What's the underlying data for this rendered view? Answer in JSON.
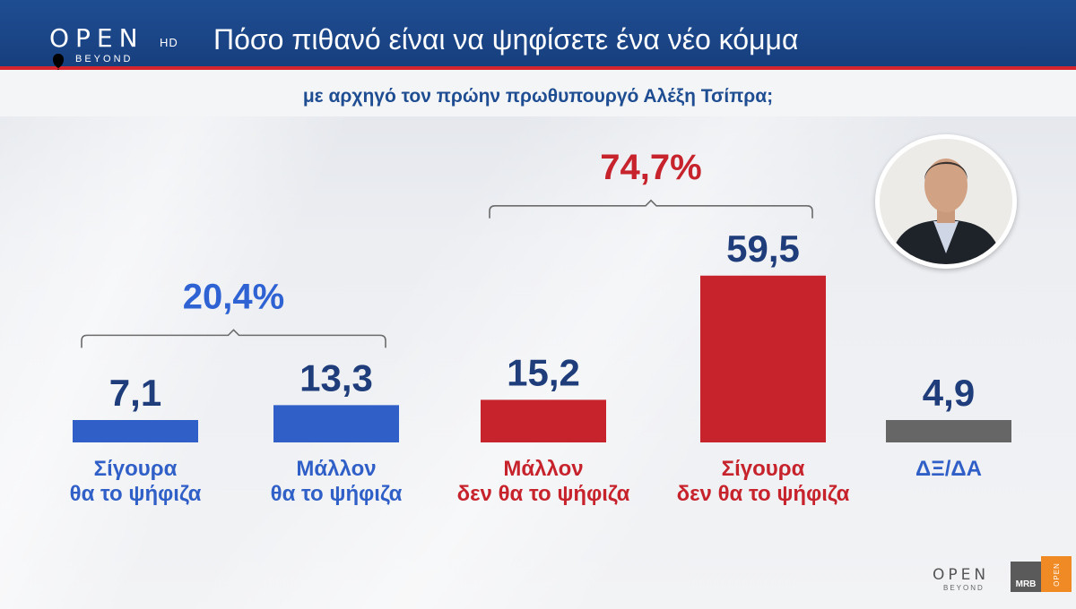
{
  "header": {
    "logo_text": "OPEN",
    "logo_hd": "HD",
    "logo_beyond": "BEYOND",
    "title": "Πόσο πιθανό είναι να ψηφίσετε ένα νέο κόμμα",
    "subtitle": "με αρχηγό τον πρώην πρωθυπουργό Αλέξη Τσίπρα;"
  },
  "footer": {
    "logo_text": "OPEN",
    "logo_beyond": "BEYOND",
    "mrb": "MRB",
    "badge": "OPEN"
  },
  "colors": {
    "blue": "#2f5fc7",
    "red": "#c7232d",
    "gray": "#666666",
    "value_text": "#1e3d7a",
    "group_blue": "#2f63d3",
    "group_red": "#c7232d"
  },
  "chart_data": {
    "type": "bar",
    "categories": [
      [
        "Σίγουρα",
        "θα το ψήφιζα"
      ],
      [
        "Μάλλον",
        "θα το ψήφιζα"
      ],
      [
        "Μάλλον",
        "δεν θα το ψήφιζα"
      ],
      [
        "Σίγουρα",
        "δεν θα το ψήφιζα"
      ],
      [
        "ΔΞ/ΔΑ"
      ]
    ],
    "values": [
      7.1,
      13.3,
      15.2,
      59.5,
      4.9
    ],
    "value_labels": [
      "7,1",
      "13,3",
      "15,2",
      "59,5",
      "4,9"
    ],
    "bar_colors": [
      "#2f5fc7",
      "#2f5fc7",
      "#c7232d",
      "#c7232d",
      "#666666"
    ],
    "label_colors": [
      "#2f5fc7",
      "#2f5fc7",
      "#c7232d",
      "#c7232d",
      "#2f5fc7"
    ],
    "groups": [
      {
        "label": "20,4%",
        "value": 20.4,
        "bars": [
          0,
          1
        ],
        "color": "#2f63d3"
      },
      {
        "label": "74,7%",
        "value": 74.7,
        "bars": [
          2,
          3
        ],
        "color": "#c7232d"
      }
    ],
    "title": "Πόσο πιθανό είναι να ψηφίσετε ένα νέο κόμμα",
    "subtitle": "με αρχηγό τον πρώην πρωθυπουργό Αλέξη Τσίπρα;",
    "ylim": [
      0,
      60
    ],
    "grid": false
  }
}
